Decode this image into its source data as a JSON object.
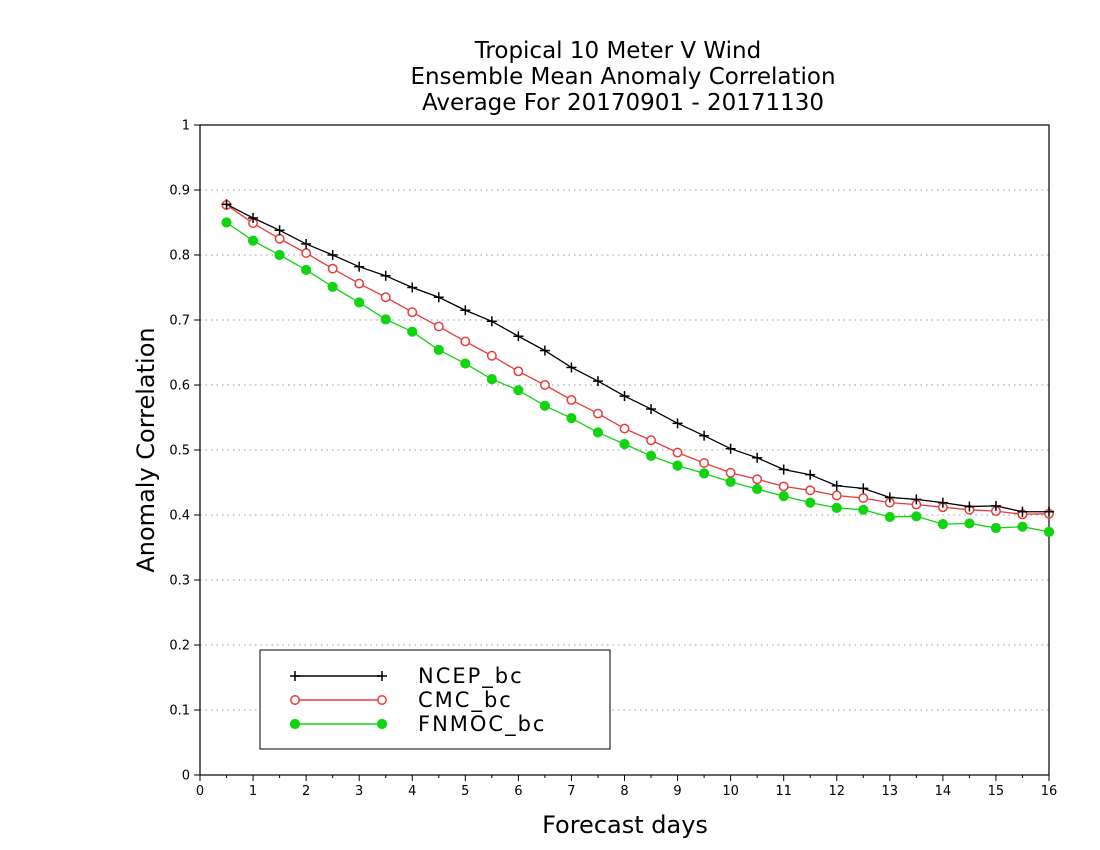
{
  "chart_data": {
    "type": "line",
    "title": [
      "Tropical 10 Meter V Wind",
      "Ensemble Mean Anomaly Correlation",
      "Average For 20170901 - 20171130"
    ],
    "xlabel": "Forecast days",
    "ylabel": "Anomaly Correlation",
    "xlim": [
      0,
      16
    ],
    "ylim": [
      0,
      1
    ],
    "xticks": [
      "0",
      "1",
      "2",
      "3",
      "4",
      "5",
      "6",
      "7",
      "8",
      "9",
      "10",
      "11",
      "12",
      "13",
      "14",
      "15",
      "16"
    ],
    "yticks": [
      "0",
      "0.1",
      "0.2",
      "0.3",
      "0.4",
      "0.5",
      "0.6",
      "0.7",
      "0.8",
      "0.9",
      "1"
    ],
    "grid": "horizontal dotted",
    "legend_position": "bottom-left",
    "x": [
      0.5,
      1,
      1.5,
      2,
      2.5,
      3,
      3.5,
      4,
      4.5,
      5,
      5.5,
      6,
      6.5,
      7,
      7.5,
      8,
      8.5,
      9,
      9.5,
      10,
      10.5,
      11,
      11.5,
      12,
      12.5,
      13,
      13.5,
      14,
      14.5,
      15,
      15.5,
      16
    ],
    "series": [
      {
        "name": "NCEP_bc",
        "color": "#000000",
        "marker": "plus",
        "values": [
          0.878,
          0.857,
          0.838,
          0.817,
          0.8,
          0.782,
          0.768,
          0.75,
          0.735,
          0.715,
          0.698,
          0.675,
          0.653,
          0.627,
          0.606,
          0.583,
          0.563,
          0.541,
          0.522,
          0.502,
          0.488,
          0.47,
          0.462,
          0.445,
          0.441,
          0.427,
          0.424,
          0.419,
          0.413,
          0.414,
          0.405,
          0.405
        ]
      },
      {
        "name": "CMC_bc",
        "color": "#e83c3c",
        "marker": "open-circle",
        "values": [
          0.877,
          0.849,
          0.825,
          0.803,
          0.779,
          0.756,
          0.735,
          0.712,
          0.69,
          0.667,
          0.645,
          0.621,
          0.6,
          0.577,
          0.556,
          0.533,
          0.515,
          0.496,
          0.48,
          0.465,
          0.455,
          0.444,
          0.438,
          0.43,
          0.426,
          0.419,
          0.416,
          0.412,
          0.408,
          0.406,
          0.401,
          0.402
        ]
      },
      {
        "name": "FNMOC_bc",
        "color": "#11d411",
        "marker": "filled-circle",
        "values": [
          0.85,
          0.822,
          0.8,
          0.777,
          0.751,
          0.727,
          0.701,
          0.682,
          0.654,
          0.633,
          0.609,
          0.592,
          0.568,
          0.549,
          0.527,
          0.509,
          0.491,
          0.476,
          0.464,
          0.451,
          0.44,
          0.429,
          0.419,
          0.411,
          0.408,
          0.397,
          0.398,
          0.386,
          0.387,
          0.38,
          0.382,
          0.374
        ]
      }
    ]
  }
}
